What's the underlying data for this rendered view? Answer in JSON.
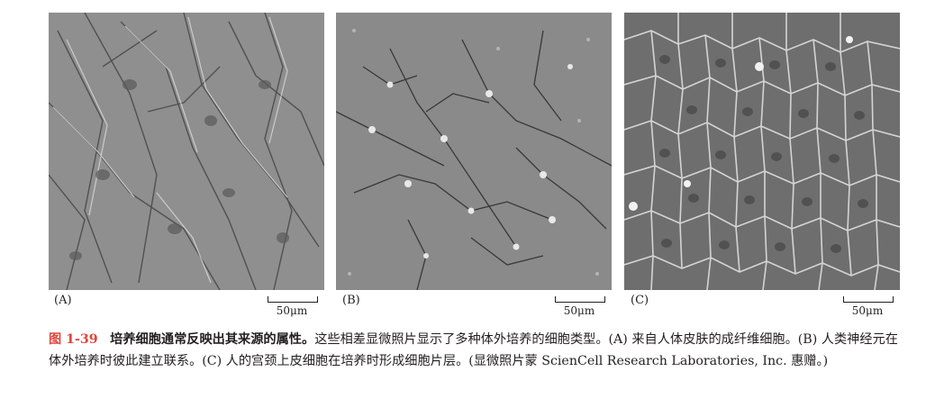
{
  "figure": {
    "number": "图 1-39",
    "title": "培养细胞通常反映出其来源的属性。",
    "body": "这些相差显微照片显示了多种体外培养的细胞类型。(A) 来自人体皮肤的成纤维细胞。(B) 人类神经元在体外培养时彼此建立联系。(C) 人的宫颈上皮细胞在培养时形成细胞片层。(显微照片蒙 ScienCell Research Laboratories, Inc. 惠赠。)"
  },
  "panels": [
    {
      "label": "(A)",
      "scale": "50μm",
      "image": "fibroblasts-micrograph"
    },
    {
      "label": "(B)",
      "scale": "50μm",
      "image": "neurons-micrograph"
    },
    {
      "label": "(C)",
      "scale": "50μm",
      "image": "epithelial-cells-micrograph"
    }
  ],
  "colors": {
    "figure_number": "#e0463b",
    "text": "#231f20"
  }
}
